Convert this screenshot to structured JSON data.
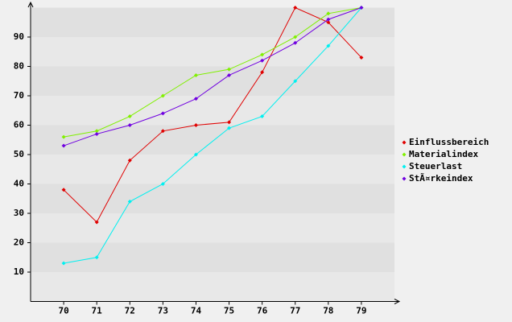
{
  "chart_data": {
    "type": "line",
    "x": [
      70,
      71,
      72,
      73,
      74,
      75,
      76,
      77,
      78,
      79
    ],
    "xlim": [
      69,
      80
    ],
    "xticks": [
      70,
      71,
      72,
      73,
      74,
      75,
      76,
      77,
      78,
      79
    ],
    "ylim": [
      0,
      100
    ],
    "yticks": [
      10,
      20,
      30,
      40,
      50,
      60,
      70,
      80,
      90
    ],
    "grid": true,
    "legend": "right",
    "series": [
      {
        "name": "Einflussbereich",
        "color": "#e00000",
        "values": [
          38,
          27,
          48,
          58,
          60,
          61,
          78,
          100,
          95,
          83
        ]
      },
      {
        "name": "Materialindex",
        "color": "#80f000",
        "values": [
          56,
          58,
          63,
          70,
          77,
          79,
          84,
          90,
          98,
          100
        ]
      },
      {
        "name": "Steuerlast",
        "color": "#00f0f0",
        "values": [
          13,
          15,
          34,
          40,
          50,
          59,
          63,
          75,
          87,
          100
        ]
      },
      {
        "name": "StÃ¤rkeindex",
        "color": "#7000e0",
        "values": [
          53,
          57,
          60,
          64,
          69,
          77,
          82,
          88,
          96,
          100
        ]
      }
    ]
  }
}
